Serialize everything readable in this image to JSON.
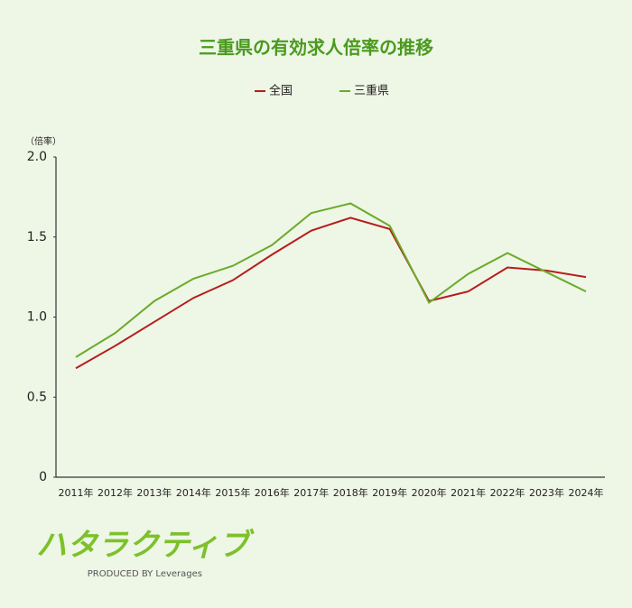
{
  "chart_data": {
    "type": "line",
    "title": "三重県の有効求人倍率の推移",
    "y_unit": "（倍率）",
    "categories": [
      "2011年",
      "2012年",
      "2013年",
      "2014年",
      "2015年",
      "2016年",
      "2017年",
      "2018年",
      "2019年",
      "2020年",
      "2021年",
      "2022年",
      "2023年",
      "2024年"
    ],
    "series": [
      {
        "name": "全国",
        "color": "#b71c1c",
        "values": [
          0.68,
          0.82,
          0.97,
          1.12,
          1.23,
          1.39,
          1.54,
          1.62,
          1.55,
          1.1,
          1.16,
          1.31,
          1.29,
          1.25
        ]
      },
      {
        "name": "三重県",
        "color": "#6aaa2a",
        "values": [
          0.75,
          0.9,
          1.1,
          1.24,
          1.32,
          1.45,
          1.65,
          1.71,
          1.57,
          1.09,
          1.27,
          1.4,
          1.28,
          1.16
        ]
      }
    ],
    "ylim": [
      0,
      2.0
    ],
    "yticks": [
      0,
      {
        "value": 0.5,
        "label": "0.5"
      },
      {
        "value": 1.0,
        "label": "1.0"
      },
      {
        "value": 1.5,
        "label": "1.5"
      },
      {
        "value": 2.0,
        "label": "2.0"
      }
    ],
    "grid": false,
    "legend": "top"
  },
  "logo": {
    "name": "ハタラクティブ",
    "tagline": "PRODUCED BY Leverages"
  }
}
